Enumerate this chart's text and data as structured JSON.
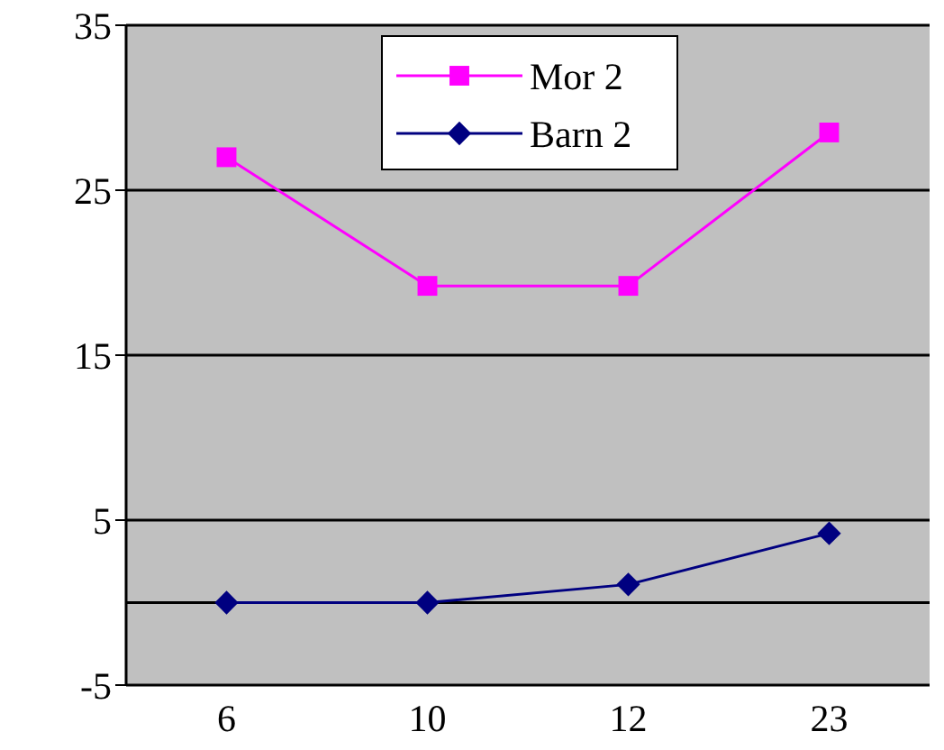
{
  "chart_data": {
    "type": "line",
    "categories": [
      "6",
      "10",
      "12",
      "23"
    ],
    "series": [
      {
        "name": "Mor 2",
        "color": "#ff00ff",
        "marker": "square",
        "values": [
          27,
          19.2,
          19.2,
          28.5
        ]
      },
      {
        "name": "Barn 2",
        "color": "#000080",
        "marker": "diamond",
        "values": [
          0,
          0,
          1.1,
          4.2
        ]
      }
    ],
    "ylim": [
      -5,
      35
    ],
    "yticks": [
      -5,
      5,
      15,
      25,
      35
    ],
    "grid": "y",
    "legend": "top",
    "ref_lines": [
      {
        "axis": "y",
        "value": 0,
        "color": "#000000"
      }
    ]
  }
}
